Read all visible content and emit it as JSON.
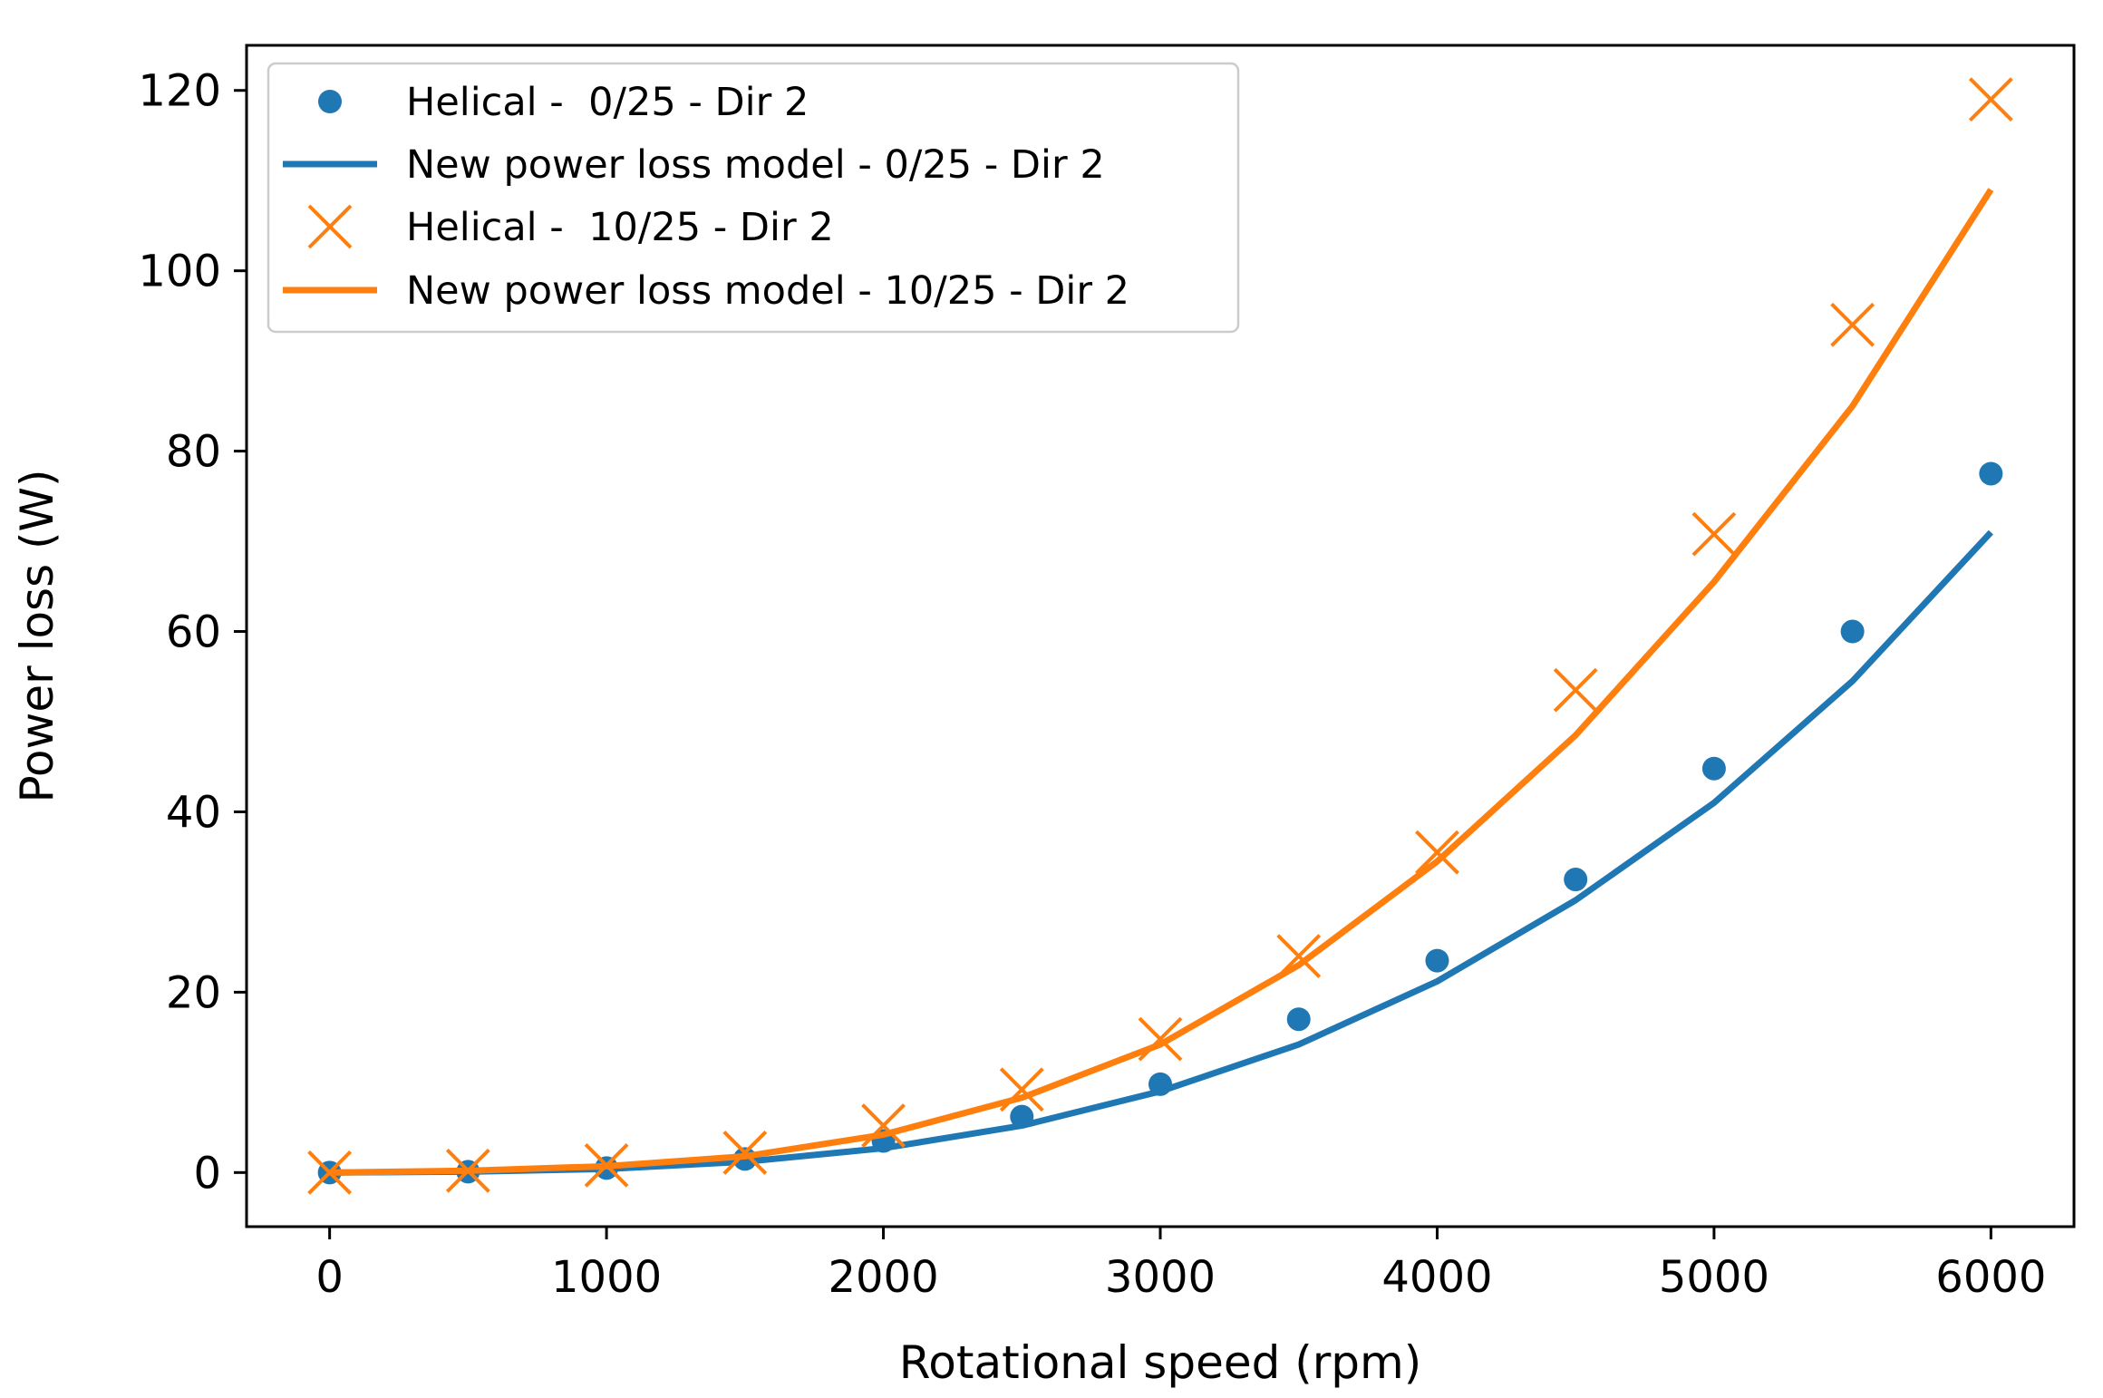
{
  "chart_data": {
    "type": "line",
    "title": "",
    "xlabel": "Rotational speed (rpm)",
    "ylabel": "Power loss (W)",
    "xlim": [
      -300,
      6300
    ],
    "ylim": [
      -6,
      125
    ],
    "xticks": [
      0,
      1000,
      2000,
      3000,
      4000,
      5000,
      6000
    ],
    "yticks": [
      0,
      20,
      40,
      60,
      80,
      100,
      120
    ],
    "xtick_labels": [
      "0",
      "1000",
      "2000",
      "3000",
      "4000",
      "5000",
      "6000"
    ],
    "ytick_labels": [
      "0",
      "20",
      "40",
      "60",
      "80",
      "100",
      "120"
    ],
    "grid": false,
    "legend_position": "top-left",
    "series": [
      {
        "name": "Helical -  0/25 - Dir 2",
        "kind": "scatter",
        "marker": "circle",
        "color": "#1f77b4",
        "x": [
          0,
          500,
          1000,
          1500,
          2000,
          2500,
          3000,
          3500,
          4000,
          4500,
          5000,
          5500,
          6000
        ],
        "y": [
          0.0,
          0.1,
          0.5,
          1.5,
          3.5,
          6.2,
          9.8,
          17.0,
          23.5,
          32.5,
          44.8,
          60.0,
          77.5
        ]
      },
      {
        "name": "New power loss model - 0/25 - Dir 2",
        "kind": "line",
        "color": "#1f77b4",
        "x": [
          0,
          500,
          1000,
          1500,
          2000,
          2500,
          3000,
          3500,
          4000,
          4500,
          5000,
          5500,
          6000
        ],
        "y": [
          0.0,
          0.1,
          0.4,
          1.2,
          2.7,
          5.2,
          9.0,
          14.2,
          21.2,
          30.2,
          41.0,
          54.5,
          71.0
        ]
      },
      {
        "name": "Helical -  10/25 - Dir 2",
        "kind": "scatter",
        "marker": "x",
        "color": "#ff7f0e",
        "x": [
          0,
          500,
          1000,
          1500,
          2000,
          2500,
          3000,
          3500,
          4000,
          4500,
          5000,
          5500,
          6000
        ],
        "y": [
          0.0,
          0.2,
          0.8,
          2.2,
          5.2,
          9.2,
          14.8,
          24.0,
          35.5,
          53.5,
          70.8,
          94.0,
          119.0
        ]
      },
      {
        "name": "New power loss model - 10/25 - Dir 2",
        "kind": "line",
        "color": "#ff7f0e",
        "x": [
          0,
          500,
          1000,
          1500,
          2000,
          2500,
          3000,
          3500,
          4000,
          4500,
          5000,
          5500,
          6000
        ],
        "y": [
          0.0,
          0.2,
          0.7,
          1.8,
          4.2,
          8.3,
          14.2,
          23.0,
          34.5,
          48.5,
          65.5,
          85.0,
          109.0
        ]
      }
    ]
  }
}
